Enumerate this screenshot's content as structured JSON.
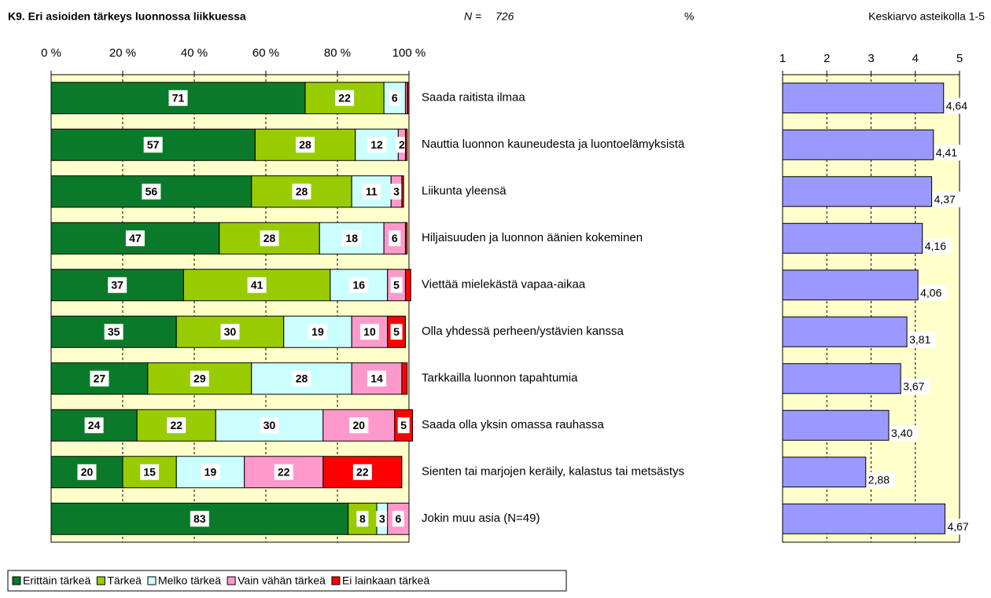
{
  "chart_data": [
    {
      "type": "stacked_bar_h",
      "title": "K9. Eri asioiden tärkeys luonnossa liikkuessa",
      "n_label": "N =",
      "n": 726,
      "xlabel": "%",
      "categories": [
        "Saada raitista ilmaa",
        "Nauttia luonnon kauneudesta ja luontoelämyksistä",
        "Liikunta yleensä",
        "Hiljaisuuden ja luonnon äänien kokeminen",
        "Viettää mielekästä vapaa-aikaa",
        "Olla yhdessä perheen/ystävien kanssa",
        "Tarkkailla luonnon tapahtumia",
        "Saada olla yksin omassa rauhassa",
        "Sienten tai marjojen keräily, kalastus tai metsästys",
        "Jokin muu asia (N=49)"
      ],
      "series": [
        {
          "name": "Erittäin tärkeä",
          "color": "#0a7a2a",
          "values": [
            71,
            57,
            56,
            47,
            37,
            35,
            27,
            24,
            20,
            83
          ]
        },
        {
          "name": "Tärkeä",
          "color": "#99cc00",
          "values": [
            22,
            28,
            28,
            28,
            41,
            30,
            29,
            22,
            15,
            8
          ]
        },
        {
          "name": "Melko tärkeä",
          "color": "#ccffff",
          "values": [
            6,
            12,
            11,
            18,
            16,
            19,
            28,
            30,
            19,
            3
          ]
        },
        {
          "name": "Vain vähän tärkeä",
          "color": "#ff99cc",
          "values": [
            0.5,
            2,
            3,
            6,
            5,
            10,
            14,
            20,
            22,
            6
          ],
          "value_labels": [
            null,
            "2",
            "3",
            "6",
            "5",
            "10",
            "14",
            "20",
            "22",
            "6"
          ]
        },
        {
          "name": "Ei lainkaan tärkeä",
          "color": "#ff0000",
          "values": [
            0.5,
            0.5,
            0.5,
            0.5,
            1.5,
            5,
            1.5,
            5,
            22,
            0
          ],
          "value_labels": [
            null,
            null,
            null,
            null,
            null,
            "5",
            null,
            "5",
            "22",
            null
          ]
        }
      ],
      "xlim": [
        0,
        100
      ],
      "xticks": [
        {
          "value": 0,
          "label": "0 %"
        },
        {
          "value": 20,
          "label": "20 %"
        },
        {
          "value": 40,
          "label": "40 %"
        },
        {
          "value": 60,
          "label": "60 %"
        },
        {
          "value": 80,
          "label": "80 %"
        },
        {
          "value": 100,
          "label": "100 %"
        }
      ],
      "grid": true,
      "legend": "bottom"
    },
    {
      "type": "bar_h",
      "title": "Keskiarvo asteikolla 1-5",
      "values": [
        4.64,
        4.41,
        4.37,
        4.16,
        4.06,
        3.81,
        3.67,
        3.4,
        2.88,
        4.67
      ],
      "value_labels": [
        "4,64",
        "4,41",
        "4,37",
        "4,16",
        "4,06",
        "3,81",
        "3,67",
        "3,40",
        "2,88",
        "4,67"
      ],
      "color": "#9999ff",
      "xlim": [
        1,
        5
      ],
      "xticks": [
        1,
        2,
        3,
        4,
        5
      ],
      "grid": true
    }
  ]
}
